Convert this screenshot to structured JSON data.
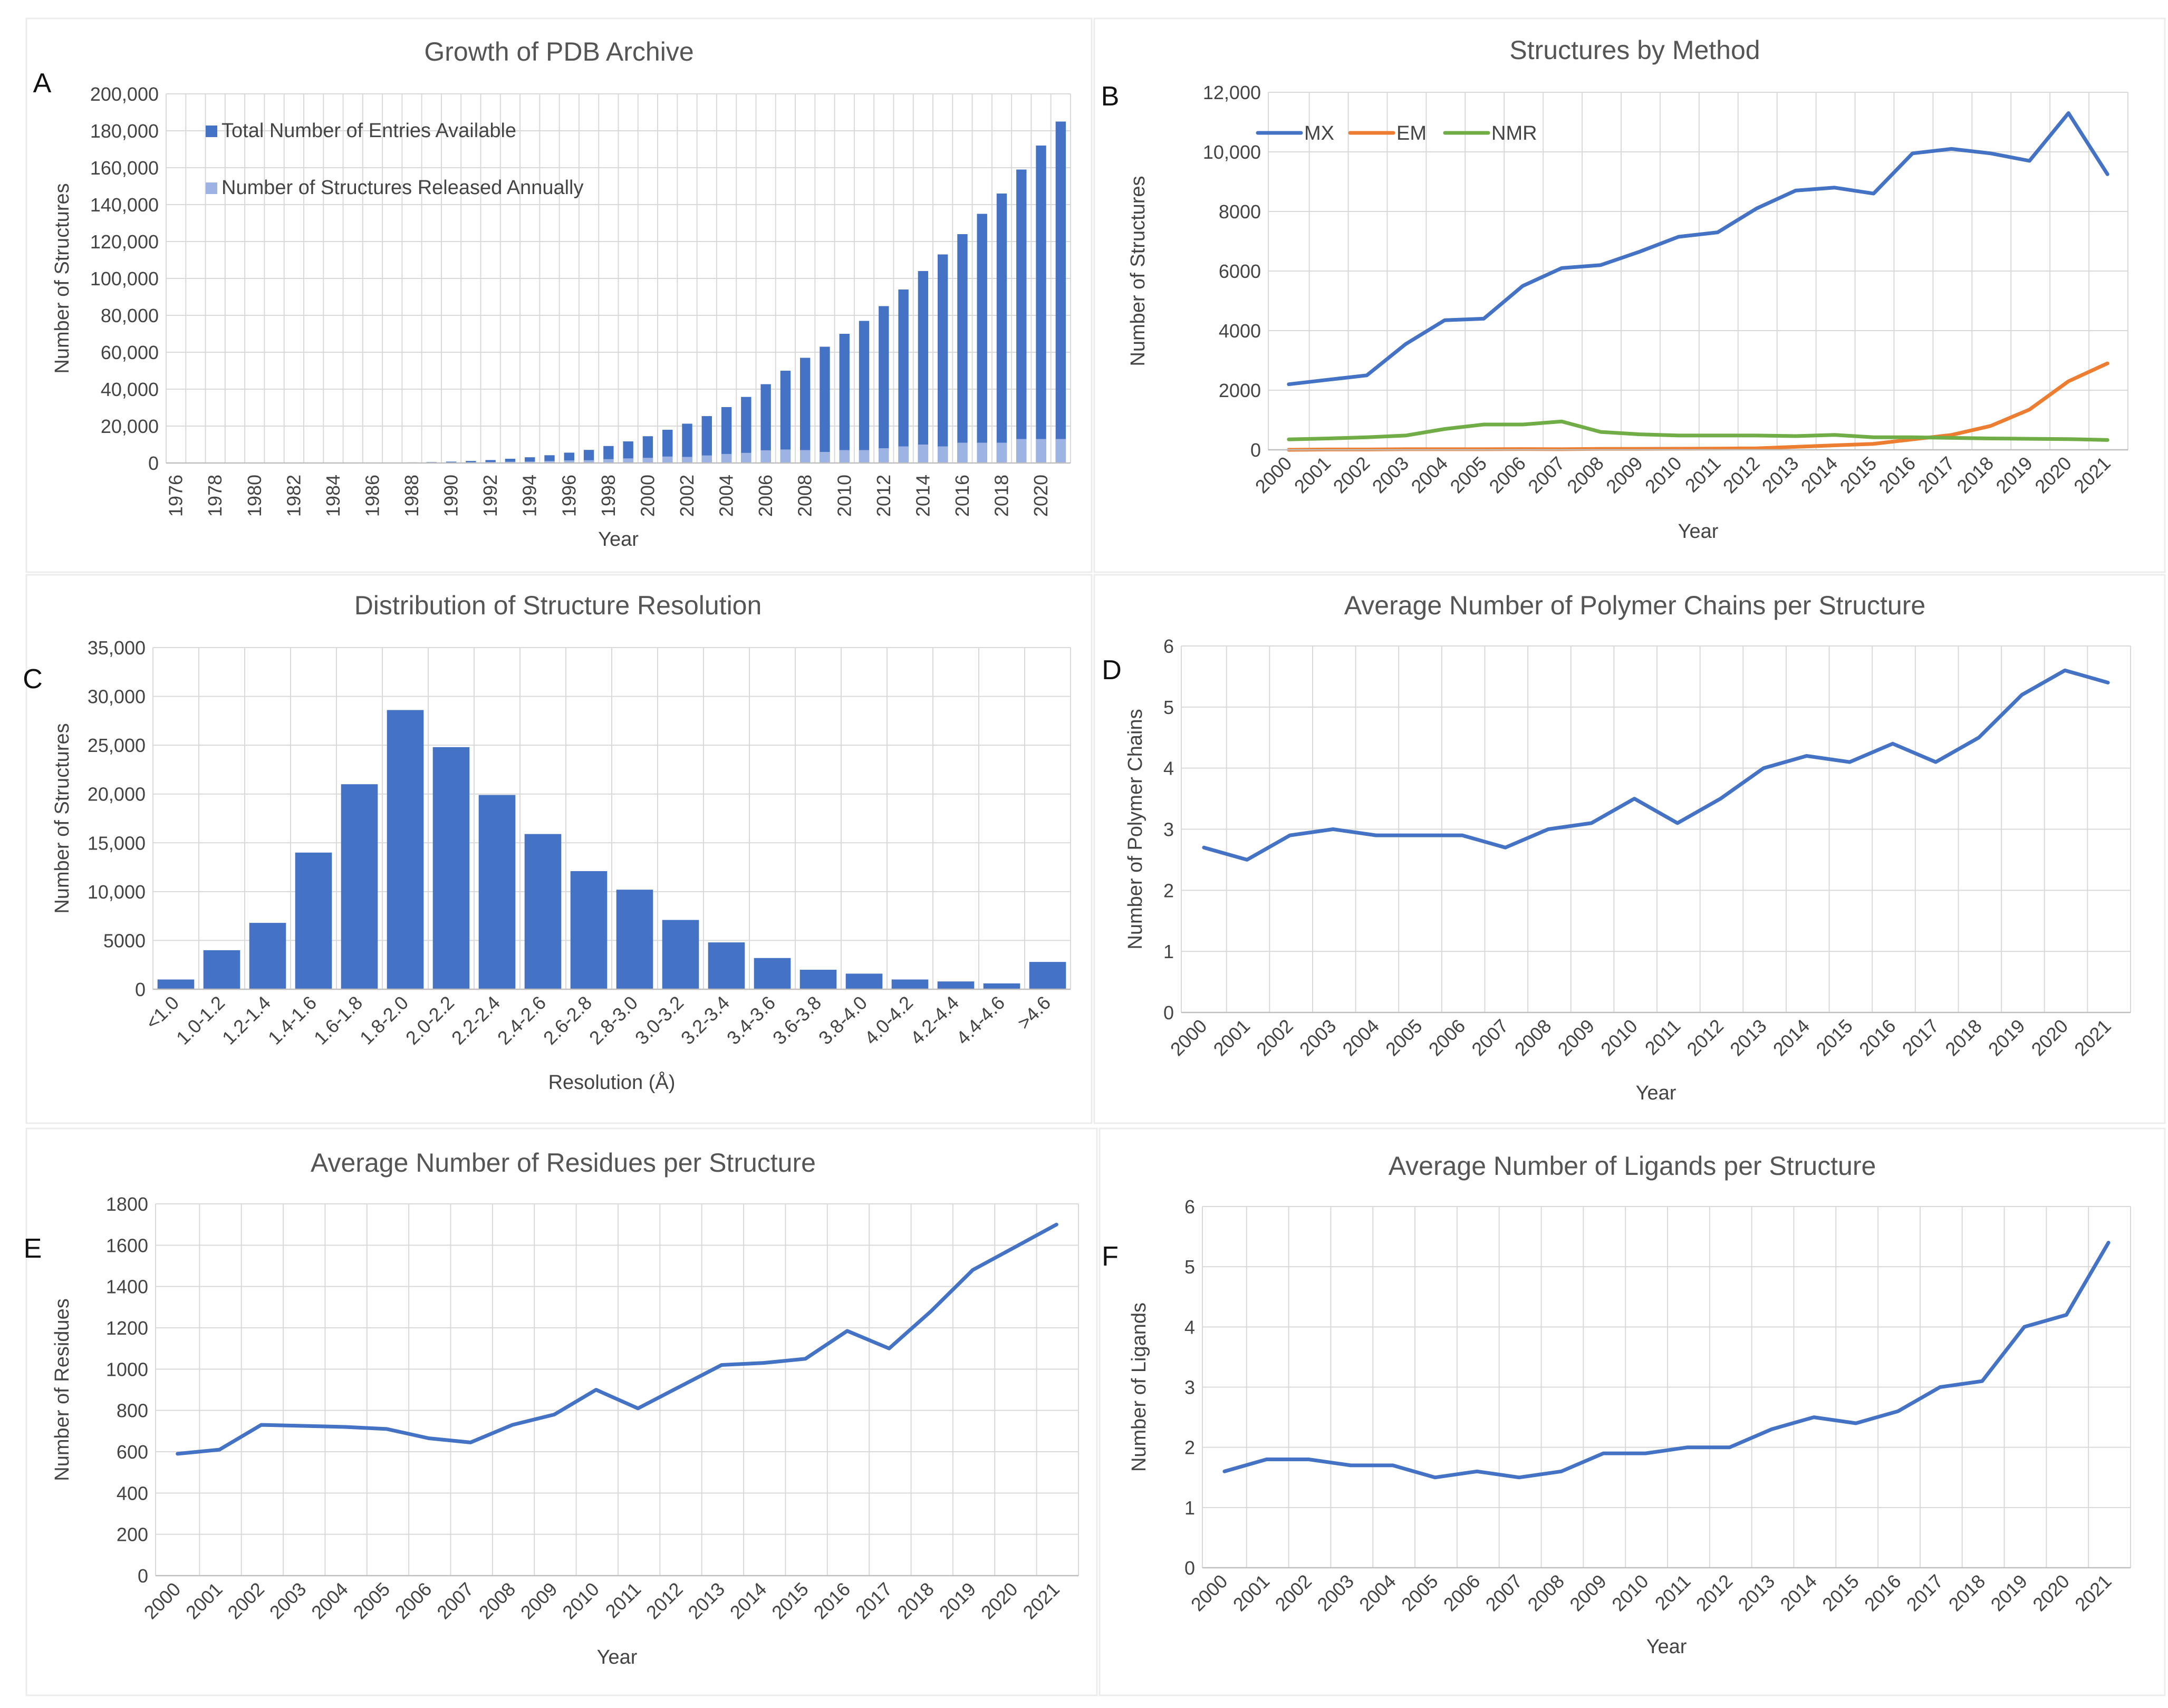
{
  "chart_data": [
    {
      "panel": "A",
      "type": "bar",
      "title": "Growth of PDB Archive",
      "xlabel": "Year",
      "ylabel": "Number of Structures",
      "ylim": [
        0,
        200000
      ],
      "yticks": [
        "0",
        "20,000",
        "40,000",
        "60,000",
        "80,000",
        "100,000",
        "120,000",
        "140,000",
        "160,000",
        "180,000",
        "200,000"
      ],
      "categories": [
        "1976",
        "1977",
        "1978",
        "1979",
        "1980",
        "1981",
        "1982",
        "1983",
        "1984",
        "1985",
        "1986",
        "1987",
        "1988",
        "1989",
        "1990",
        "1991",
        "1992",
        "1993",
        "1994",
        "1995",
        "1996",
        "1997",
        "1998",
        "1999",
        "2000",
        "2001",
        "2002",
        "2003",
        "2004",
        "2005",
        "2006",
        "2007",
        "2008",
        "2009",
        "2010",
        "2011",
        "2012",
        "2013",
        "2014",
        "2015",
        "2016",
        "2017",
        "2018",
        "2019",
        "2020",
        "2021"
      ],
      "xtick_labels": [
        "1976",
        "1978",
        "1980",
        "1982",
        "1984",
        "1986",
        "1988",
        "1990",
        "1992",
        "1994",
        "1996",
        "1998",
        "2000",
        "2002",
        "2004",
        "2006",
        "2008",
        "2010",
        "2012",
        "2014",
        "2016",
        "2018",
        "2020"
      ],
      "series": [
        {
          "name": "Total Number of Entries Available",
          "color": "#4472c4",
          "values": [
            13,
            23,
            38,
            57,
            69,
            92,
            124,
            153,
            182,
            223,
            253,
            291,
            349,
            502,
            740,
            1100,
            1600,
            2300,
            3100,
            4200,
            5600,
            7100,
            9200,
            11700,
            14500,
            18000,
            21300,
            25400,
            30300,
            35800,
            42700,
            50000,
            57000,
            63000,
            70000,
            77000,
            85000,
            94000,
            104000,
            113000,
            124000,
            135000,
            146000,
            159000,
            172000,
            185000
          ]
        },
        {
          "name": "Number of Structures Released Annually",
          "color": "#9db3e3",
          "values": [
            13,
            10,
            15,
            19,
            12,
            23,
            32,
            29,
            29,
            41,
            30,
            38,
            58,
            153,
            238,
            360,
            500,
            700,
            800,
            1100,
            1400,
            1500,
            2100,
            2500,
            2800,
            3500,
            3300,
            4100,
            4900,
            5500,
            6900,
            7300,
            7000,
            6000,
            7000,
            7000,
            8000,
            9000,
            10000,
            9000,
            11000,
            11000,
            11000,
            13000,
            13000,
            13000
          ]
        }
      ]
    },
    {
      "panel": "B",
      "type": "line",
      "title": "Structures by Method",
      "xlabel": "Year",
      "ylabel": "Number of Structures",
      "ylim": [
        0,
        12000
      ],
      "yticks": [
        "0",
        "2000",
        "4000",
        "6000",
        "8000",
        "10,000",
        "12,000"
      ],
      "categories": [
        "2000",
        "2001",
        "2002",
        "2003",
        "2004",
        "2005",
        "2006",
        "2007",
        "2008",
        "2009",
        "2010",
        "2011",
        "2012",
        "2013",
        "2014",
        "2015",
        "2016",
        "2017",
        "2018",
        "2019",
        "2020",
        "2021"
      ],
      "series": [
        {
          "name": "MX",
          "color": "#4472c4",
          "values": [
            2200,
            2350,
            2500,
            3550,
            4350,
            4400,
            5500,
            6100,
            6200,
            6650,
            7150,
            7300,
            8100,
            8700,
            8800,
            8600,
            9950,
            10100,
            9950,
            9700,
            11300,
            9250
          ]
        },
        {
          "name": "EM",
          "color": "#ed7d31",
          "values": [
            0,
            10,
            10,
            20,
            20,
            20,
            25,
            20,
            30,
            30,
            35,
            40,
            50,
            100,
            150,
            200,
            350,
            500,
            800,
            1350,
            2300,
            2900
          ]
        },
        {
          "name": "NMR",
          "color": "#70ad47",
          "values": [
            350,
            380,
            420,
            480,
            700,
            850,
            850,
            950,
            600,
            520,
            480,
            480,
            480,
            460,
            500,
            420,
            420,
            400,
            380,
            370,
            360,
            330
          ]
        }
      ]
    },
    {
      "panel": "C",
      "type": "bar",
      "title": "Distribution of Structure Resolution",
      "xlabel": "Resolution (Å)",
      "ylabel": "Number of Structures",
      "ylim": [
        0,
        35000
      ],
      "yticks": [
        "0",
        "5000",
        "10,000",
        "15,000",
        "20,000",
        "25,000",
        "30,000",
        "35,000"
      ],
      "categories": [
        "<1.0",
        "1.0-1.2",
        "1.2-1.4",
        "1.4-1.6",
        "1.6-1.8",
        "1.8-2.0",
        "2.0-2.2",
        "2.2-2.4",
        "2.4-2.6",
        "2.6-2.8",
        "2.8-3.0",
        "3.0-3.2",
        "3.2-3.4",
        "3.4-3.6",
        "3.6-3.8",
        "3.8-4.0",
        "4.0-4.2",
        "4.2-4.4",
        "4.4-4.6",
        ">4.6"
      ],
      "series": [
        {
          "name": "Structures",
          "color": "#4472c4",
          "values": [
            1000,
            4000,
            6800,
            14000,
            21000,
            28600,
            24800,
            19900,
            15900,
            12100,
            10200,
            7100,
            4800,
            3200,
            2000,
            1600,
            1000,
            800,
            600,
            2800
          ]
        }
      ]
    },
    {
      "panel": "D",
      "type": "line",
      "title": "Average Number of Polymer Chains per Structure",
      "xlabel": "Year",
      "ylabel": "Number of Polymer Chains",
      "ylim": [
        0,
        6
      ],
      "yticks": [
        "0",
        "1",
        "2",
        "3",
        "4",
        "5",
        "6"
      ],
      "categories": [
        "2000",
        "2001",
        "2002",
        "2003",
        "2004",
        "2005",
        "2006",
        "2007",
        "2008",
        "2009",
        "2010",
        "2011",
        "2012",
        "2013",
        "2014",
        "2015",
        "2016",
        "2017",
        "2018",
        "2019",
        "2020",
        "2021"
      ],
      "series": [
        {
          "name": "Polymer Chains",
          "color": "#4472c4",
          "values": [
            2.7,
            2.5,
            2.9,
            3.0,
            2.9,
            2.9,
            2.9,
            2.7,
            3.0,
            3.1,
            3.5,
            3.1,
            3.5,
            4.0,
            4.2,
            4.1,
            4.4,
            4.1,
            4.5,
            5.2,
            5.6,
            5.4
          ]
        }
      ]
    },
    {
      "panel": "E",
      "type": "line",
      "title": "Average Number of Residues per Structure",
      "xlabel": "Year",
      "ylabel": "Number of Residues",
      "ylim": [
        0,
        1800
      ],
      "yticks": [
        "0",
        "200",
        "400",
        "600",
        "800",
        "1000",
        "1200",
        "1400",
        "1600",
        "1800"
      ],
      "categories": [
        "2000",
        "2001",
        "2002",
        "2003",
        "2004",
        "2005",
        "2006",
        "2007",
        "2008",
        "2009",
        "2010",
        "2011",
        "2012",
        "2013",
        "2014",
        "2015",
        "2016",
        "2017",
        "2018",
        "2019",
        "2020",
        "2021"
      ],
      "series": [
        {
          "name": "Residues",
          "color": "#4472c4",
          "values": [
            590,
            610,
            730,
            725,
            720,
            710,
            665,
            645,
            730,
            780,
            900,
            810,
            915,
            1020,
            1030,
            1050,
            1185,
            1100,
            1280,
            1480,
            1590,
            1700
          ]
        }
      ]
    },
    {
      "panel": "F",
      "type": "line",
      "title": "Average Number of Ligands per Structure",
      "xlabel": "Year",
      "ylabel": "Number of Ligands",
      "ylim": [
        0,
        6
      ],
      "yticks": [
        "0",
        "1",
        "2",
        "3",
        "4",
        "5",
        "6"
      ],
      "categories": [
        "2000",
        "2001",
        "2002",
        "2003",
        "2004",
        "2005",
        "2006",
        "2007",
        "2008",
        "2009",
        "2010",
        "2011",
        "2012",
        "2013",
        "2014",
        "2015",
        "2016",
        "2017",
        "2018",
        "2019",
        "2020",
        "2021"
      ],
      "series": [
        {
          "name": "Ligands",
          "color": "#4472c4",
          "values": [
            1.6,
            1.8,
            1.8,
            1.7,
            1.7,
            1.5,
            1.6,
            1.5,
            1.6,
            1.9,
            1.9,
            2.0,
            2.0,
            2.3,
            2.5,
            2.4,
            2.6,
            3.0,
            3.1,
            4.0,
            4.2,
            5.4
          ]
        }
      ]
    }
  ]
}
